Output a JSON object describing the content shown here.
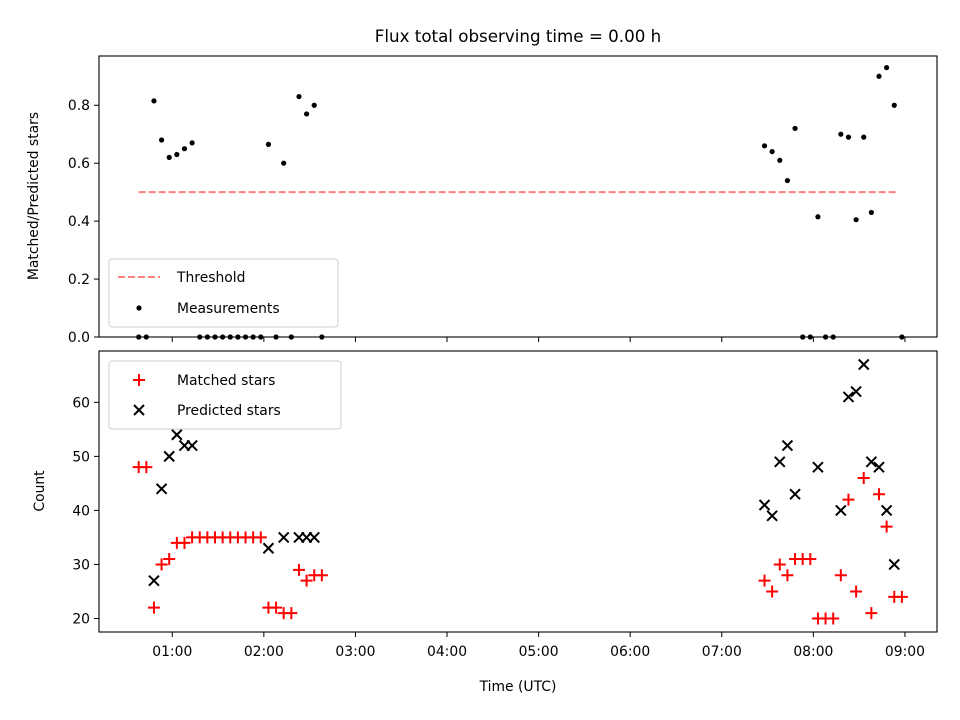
{
  "chart_data": [
    {
      "type": "scatter",
      "title": "Flux total observing time = 0.00 h",
      "xlabel": "",
      "ylabel": "Matched/Predicted stars",
      "ylim": [
        0,
        0.97
      ],
      "yticks": [
        "0.0",
        "0.2",
        "0.4",
        "0.6",
        "0.8"
      ],
      "ytick_values": [
        0,
        0.2,
        0.4,
        0.6,
        0.8
      ],
      "x_unit": "hours UTC",
      "xlim": [
        0.2,
        9.35
      ],
      "xticks_hidden": [
        1,
        2,
        3,
        4,
        5,
        6,
        7,
        8,
        9
      ],
      "legend": {
        "placement": "lower-left",
        "entries": [
          "Threshold",
          "Measurements"
        ]
      },
      "threshold": {
        "name": "Threshold",
        "value": 0.5,
        "x_range": [
          "00:38",
          "08:55"
        ],
        "color": "#ff7f7f",
        "style": "dashed"
      },
      "series": [
        {
          "name": "Measurements",
          "color": "#000000",
          "marker": "dot",
          "points": [
            [
              "00:38",
              0
            ],
            [
              "00:43",
              0
            ],
            [
              "00:48",
              0.815
            ],
            [
              "00:53",
              0.68
            ],
            [
              "00:58",
              0.62
            ],
            [
              "01:03",
              0.63
            ],
            [
              "01:08",
              0.65
            ],
            [
              "01:13",
              0.67
            ],
            [
              "01:18",
              0
            ],
            [
              "01:23",
              0
            ],
            [
              "01:28",
              0
            ],
            [
              "01:33",
              0
            ],
            [
              "01:38",
              0
            ],
            [
              "01:43",
              0
            ],
            [
              "01:48",
              0
            ],
            [
              "01:53",
              0
            ],
            [
              "01:58",
              0
            ],
            [
              "02:03",
              0.665
            ],
            [
              "02:08",
              0
            ],
            [
              "02:13",
              0.6
            ],
            [
              "02:18",
              0
            ],
            [
              "02:23",
              0.83
            ],
            [
              "02:28",
              0.77
            ],
            [
              "02:33",
              0.8
            ],
            [
              "02:38",
              0
            ],
            [
              "07:28",
              0.66
            ],
            [
              "07:33",
              0.64
            ],
            [
              "07:38",
              0.61
            ],
            [
              "07:43",
              0.54
            ],
            [
              "07:48",
              0.72
            ],
            [
              "07:53",
              0
            ],
            [
              "07:58",
              0
            ],
            [
              "08:03",
              0.415
            ],
            [
              "08:08",
              0
            ],
            [
              "08:13",
              0
            ],
            [
              "08:18",
              0.7
            ],
            [
              "08:23",
              0.69
            ],
            [
              "08:28",
              0.405
            ],
            [
              "08:33",
              0.69
            ],
            [
              "08:38",
              0.43
            ],
            [
              "08:43",
              0.9
            ],
            [
              "08:48",
              0.93
            ],
            [
              "08:53",
              0.8
            ],
            [
              "08:58",
              0
            ]
          ]
        }
      ]
    },
    {
      "type": "scatter",
      "title": "",
      "xlabel": "Time (UTC)",
      "ylabel": "Count",
      "ylim": [
        17.5,
        69.5
      ],
      "yticks": [
        "20",
        "30",
        "40",
        "50",
        "60"
      ],
      "ytick_values": [
        20,
        30,
        40,
        50,
        60
      ],
      "x_unit": "hours UTC",
      "xlim": [
        0.2,
        9.35
      ],
      "xticks": [
        "01:00",
        "02:00",
        "03:00",
        "04:00",
        "05:00",
        "06:00",
        "07:00",
        "08:00",
        "09:00"
      ],
      "xtick_values": [
        1,
        2,
        3,
        4,
        5,
        6,
        7,
        8,
        9
      ],
      "legend": {
        "placement": "upper-left",
        "entries": [
          "Matched stars",
          "Predicted stars"
        ]
      },
      "series": [
        {
          "name": "Matched stars",
          "color": "#ff0000",
          "marker": "plus",
          "points": [
            [
              "00:38",
              48
            ],
            [
              "00:43",
              48
            ],
            [
              "00:48",
              22
            ],
            [
              "00:53",
              30
            ],
            [
              "00:58",
              31
            ],
            [
              "01:03",
              34
            ],
            [
              "01:08",
              34
            ],
            [
              "01:13",
              35
            ],
            [
              "01:18",
              35
            ],
            [
              "01:23",
              35
            ],
            [
              "01:28",
              35
            ],
            [
              "01:33",
              35
            ],
            [
              "01:38",
              35
            ],
            [
              "01:43",
              35
            ],
            [
              "01:48",
              35
            ],
            [
              "01:53",
              35
            ],
            [
              "01:58",
              35
            ],
            [
              "02:03",
              22
            ],
            [
              "02:08",
              22
            ],
            [
              "02:13",
              21
            ],
            [
              "02:18",
              21
            ],
            [
              "02:23",
              29
            ],
            [
              "02:28",
              27
            ],
            [
              "02:33",
              28
            ],
            [
              "02:38",
              28
            ],
            [
              "07:28",
              27
            ],
            [
              "07:33",
              25
            ],
            [
              "07:38",
              30
            ],
            [
              "07:43",
              28
            ],
            [
              "07:48",
              31
            ],
            [
              "07:53",
              31
            ],
            [
              "07:58",
              31
            ],
            [
              "08:03",
              20
            ],
            [
              "08:08",
              20
            ],
            [
              "08:13",
              20
            ],
            [
              "08:18",
              28
            ],
            [
              "08:23",
              42
            ],
            [
              "08:28",
              25
            ],
            [
              "08:33",
              46
            ],
            [
              "08:38",
              21
            ],
            [
              "08:43",
              43
            ],
            [
              "08:48",
              37
            ],
            [
              "08:53",
              24
            ],
            [
              "08:58",
              24
            ]
          ]
        },
        {
          "name": "Predicted stars",
          "color": "#000000",
          "marker": "x",
          "points": [
            [
              "00:48",
              27
            ],
            [
              "00:53",
              44
            ],
            [
              "00:58",
              50
            ],
            [
              "01:03",
              54
            ],
            [
              "01:08",
              52
            ],
            [
              "01:13",
              52
            ],
            [
              "02:03",
              33
            ],
            [
              "02:13",
              35
            ],
            [
              "02:23",
              35
            ],
            [
              "02:28",
              35
            ],
            [
              "02:33",
              35
            ],
            [
              "07:28",
              41
            ],
            [
              "07:33",
              39
            ],
            [
              "07:38",
              49
            ],
            [
              "07:43",
              52
            ],
            [
              "07:48",
              43
            ],
            [
              "08:03",
              48
            ],
            [
              "08:18",
              40
            ],
            [
              "08:23",
              61
            ],
            [
              "08:28",
              62
            ],
            [
              "08:33",
              67
            ],
            [
              "08:38",
              49
            ],
            [
              "08:43",
              48
            ],
            [
              "08:48",
              40
            ],
            [
              "08:53",
              30
            ]
          ]
        }
      ]
    }
  ]
}
